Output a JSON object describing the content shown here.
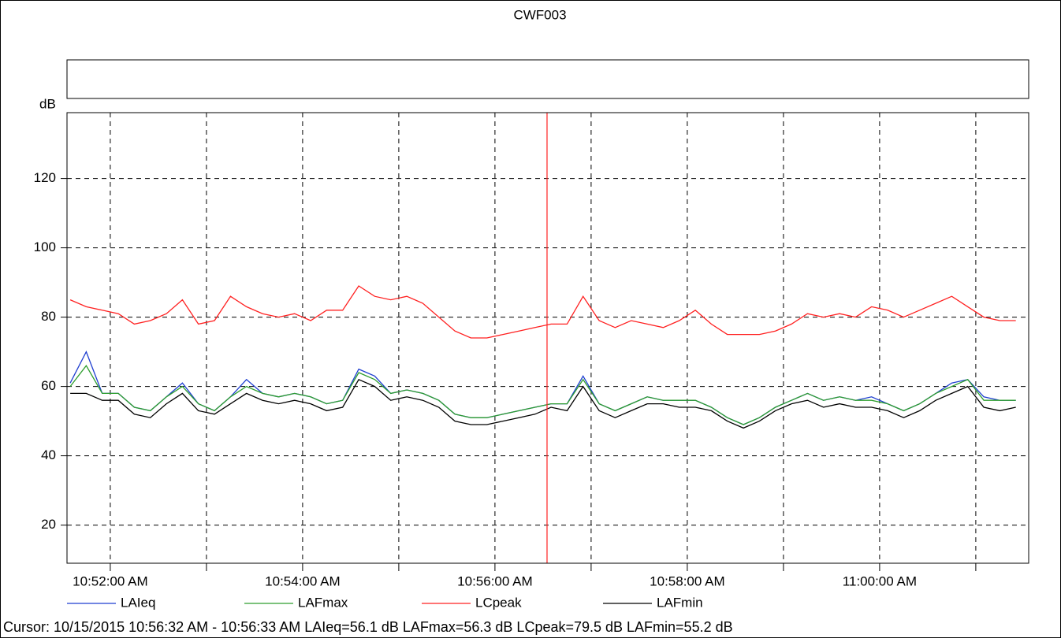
{
  "chart_data": {
    "type": "line",
    "title": "CWF003",
    "ylabel": "dB",
    "x": [
      39095,
      39105,
      39115,
      39125,
      39135,
      39145,
      39155,
      39165,
      39175,
      39185,
      39195,
      39205,
      39215,
      39225,
      39235,
      39245,
      39255,
      39265,
      39275,
      39285,
      39295,
      39305,
      39315,
      39325,
      39335,
      39345,
      39355,
      39365,
      39375,
      39385,
      39395,
      39405,
      39415,
      39425,
      39435,
      39445,
      39455,
      39465,
      39475,
      39485,
      39495,
      39505,
      39515,
      39525,
      39535,
      39545,
      39555,
      39565,
      39575,
      39585,
      39595,
      39605,
      39615,
      39625,
      39635,
      39645,
      39655,
      39665,
      39675,
      39685
    ],
    "series": [
      {
        "name": "LAIeq",
        "color": "#1f3fd0",
        "values": [
          61,
          70,
          58,
          58,
          54,
          53,
          57,
          61,
          55,
          53,
          57,
          62,
          58,
          57,
          58,
          57,
          55,
          56,
          65,
          63,
          58,
          59,
          58,
          56,
          52,
          51,
          51,
          52,
          53,
          54,
          55,
          55,
          63,
          55,
          53,
          55,
          57,
          56,
          56,
          56,
          54,
          51,
          49,
          51,
          54,
          56,
          58,
          56,
          57,
          56,
          57,
          55,
          53,
          55,
          58,
          61,
          62,
          57,
          56,
          56
        ]
      },
      {
        "name": "LAFmax",
        "color": "#2e9e2e",
        "values": [
          60,
          66,
          58,
          58,
          54,
          53,
          57,
          60,
          55,
          53,
          57,
          60,
          58,
          57,
          58,
          57,
          55,
          56,
          64,
          62,
          58,
          59,
          58,
          56,
          52,
          51,
          51,
          52,
          53,
          54,
          55,
          55,
          62,
          55,
          53,
          55,
          57,
          56,
          56,
          56,
          54,
          51,
          49,
          51,
          54,
          56,
          58,
          56,
          57,
          56,
          56,
          55,
          53,
          55,
          58,
          60,
          62,
          56,
          56,
          56
        ]
      },
      {
        "name": "LCpeak",
        "color": "#ff2020",
        "values": [
          85,
          83,
          82,
          81,
          78,
          79,
          81,
          85,
          78,
          79,
          86,
          83,
          81,
          80,
          81,
          79,
          82,
          82,
          89,
          86,
          85,
          86,
          84,
          80,
          76,
          74,
          74,
          75,
          76,
          77,
          78,
          78,
          86,
          79,
          77,
          79,
          78,
          77,
          79,
          82,
          78,
          75,
          75,
          75,
          76,
          78,
          81,
          80,
          81,
          80,
          83,
          82,
          80,
          82,
          84,
          86,
          83,
          80,
          79,
          79
        ]
      },
      {
        "name": "LAFmin",
        "color": "#000000",
        "values": [
          58,
          58,
          56,
          56,
          52,
          51,
          55,
          58,
          53,
          52,
          55,
          58,
          56,
          55,
          56,
          55,
          53,
          54,
          62,
          60,
          56,
          57,
          56,
          54,
          50,
          49,
          49,
          50,
          51,
          52,
          54,
          53,
          60,
          53,
          51,
          53,
          55,
          55,
          54,
          54,
          53,
          50,
          48,
          50,
          53,
          55,
          56,
          54,
          55,
          54,
          54,
          53,
          51,
          53,
          56,
          58,
          60,
          54,
          53,
          54
        ]
      }
    ],
    "xlim": [
      39093,
      39693
    ],
    "xticks": [
      {
        "value": 39120,
        "label": "10:52:00 AM"
      },
      {
        "value": 39240,
        "label": "10:54:00 AM"
      },
      {
        "value": 39360,
        "label": "10:56:00 AM"
      },
      {
        "value": 39480,
        "label": "10:58:00 AM"
      },
      {
        "value": 39600,
        "label": "11:00:00 AM"
      }
    ],
    "xminor": [
      39180,
      39300,
      39420,
      39540,
      39660
    ],
    "ylim": [
      9,
      139
    ],
    "yticks": [
      20,
      40,
      60,
      80,
      100,
      120
    ],
    "grid": true,
    "cursor": {
      "x": 39392.5,
      "color": "#ff2020",
      "label": "Cursor: 10/15/2015 10:56:32 AM - 10:56:33 AM  LAIeq=56.1 dB  LAFmax=56.3 dB  LCpeak=79.5 dB  LAFmin=55.2 dB"
    }
  }
}
